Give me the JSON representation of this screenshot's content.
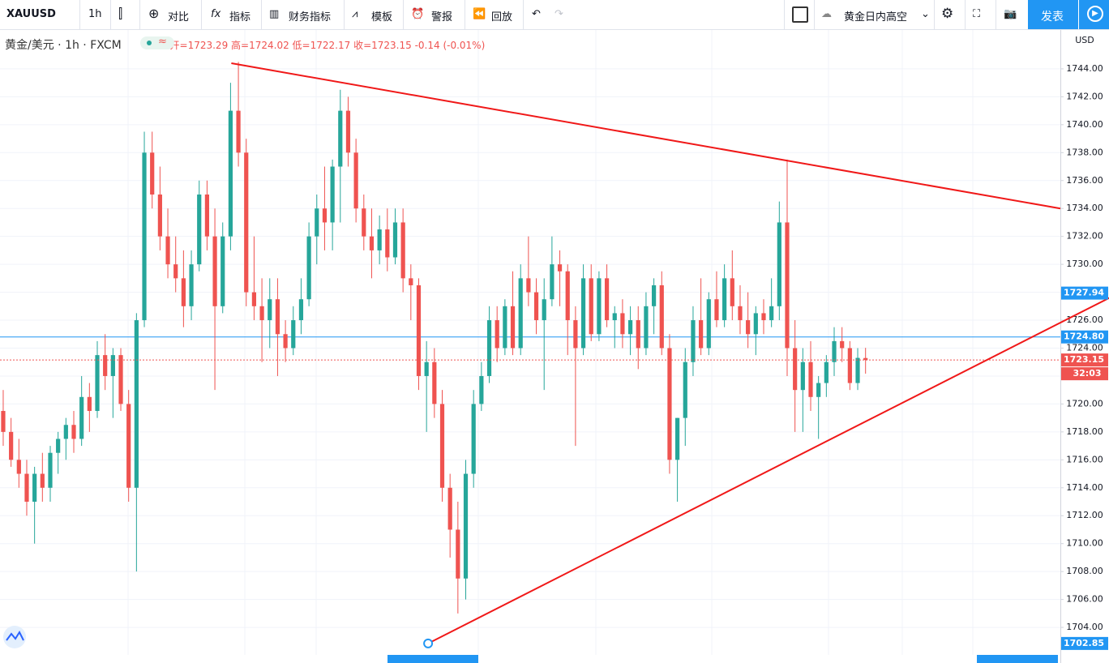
{
  "toolbar": {
    "symbol": "XAUUSD",
    "interval": "1h",
    "compare": "对比",
    "indicators": "指标",
    "financials": "财务指标",
    "templates": "模板",
    "alerts": "警报",
    "replay": "回放",
    "layout_name": "黄金日内高空",
    "publish": "发表"
  },
  "chart_data": {
    "type": "candlestick",
    "title": "黄金/美元 · 1h · FXCM",
    "legend": {
      "open": "开=",
      "high": "高=",
      "low": "低=",
      "close": "收=",
      "change": "-0.14 (-0.01%)"
    },
    "currency": "USD",
    "ohlc": [
      [
        1719.5,
        1721,
        1717,
        1718
      ],
      [
        1718,
        1719,
        1715.5,
        1716
      ],
      [
        1716,
        1717.5,
        1714,
        1715
      ],
      [
        1715,
        1716,
        1712,
        1713
      ],
      [
        1713,
        1715.5,
        1710,
        1715
      ],
      [
        1715,
        1716.5,
        1713,
        1714
      ],
      [
        1714,
        1717,
        1713,
        1716.5
      ],
      [
        1716.5,
        1718,
        1715,
        1717.5
      ],
      [
        1717.5,
        1719,
        1716,
        1718.5
      ],
      [
        1718.5,
        1719.5,
        1716.5,
        1717.5
      ],
      [
        1717.5,
        1722,
        1717,
        1720.5
      ],
      [
        1720.5,
        1721.5,
        1718,
        1719.5
      ],
      [
        1719.5,
        1724.5,
        1719,
        1723.5
      ],
      [
        1723.5,
        1725,
        1721,
        1722
      ],
      [
        1722,
        1724,
        1719,
        1723.5
      ],
      [
        1723.5,
        1724,
        1719.5,
        1720
      ],
      [
        1720,
        1721,
        1713,
        1714
      ],
      [
        1714,
        1726.5,
        1708,
        1726
      ],
      [
        1726,
        1739.5,
        1725.5,
        1738
      ],
      [
        1738,
        1739.5,
        1734,
        1735
      ],
      [
        1735,
        1737,
        1731,
        1732
      ],
      [
        1732,
        1734,
        1729,
        1730
      ],
      [
        1730,
        1732,
        1728,
        1729
      ],
      [
        1729,
        1731,
        1725.5,
        1727
      ],
      [
        1727,
        1731,
        1726,
        1730
      ],
      [
        1730,
        1736,
        1729.5,
        1735
      ],
      [
        1735,
        1736,
        1731,
        1732
      ],
      [
        1732,
        1734,
        1721,
        1727
      ],
      [
        1727,
        1733,
        1726.5,
        1732
      ],
      [
        1732,
        1743,
        1731,
        1741
      ],
      [
        1741,
        1744.5,
        1737,
        1738
      ],
      [
        1738,
        1739,
        1727,
        1728
      ],
      [
        1728,
        1732,
        1726,
        1727
      ],
      [
        1727,
        1729,
        1723,
        1726
      ],
      [
        1726,
        1729,
        1724,
        1727.5
      ],
      [
        1727.5,
        1729,
        1722,
        1725
      ],
      [
        1725,
        1726,
        1723,
        1724
      ],
      [
        1724,
        1727,
        1723.5,
        1726
      ],
      [
        1726,
        1729,
        1725,
        1727.5
      ],
      [
        1727.5,
        1733,
        1727,
        1732
      ],
      [
        1732,
        1735,
        1730,
        1734
      ],
      [
        1734,
        1737,
        1731,
        1733
      ],
      [
        1733,
        1737.5,
        1731,
        1737
      ],
      [
        1737,
        1742.5,
        1733,
        1741
      ],
      [
        1741,
        1742,
        1737,
        1738
      ],
      [
        1738,
        1739,
        1733,
        1734
      ],
      [
        1734,
        1735,
        1731,
        1732
      ],
      [
        1732,
        1734,
        1729,
        1731
      ],
      [
        1731,
        1733.5,
        1730,
        1732.5
      ],
      [
        1732.5,
        1734,
        1729.5,
        1730.5
      ],
      [
        1730.5,
        1734,
        1730,
        1733
      ],
      [
        1733,
        1734,
        1728,
        1729
      ],
      [
        1729,
        1730,
        1726,
        1728.5
      ],
      [
        1728.5,
        1729,
        1721,
        1722
      ],
      [
        1722,
        1724.5,
        1718,
        1723
      ],
      [
        1723,
        1724,
        1719,
        1720
      ],
      [
        1720,
        1721,
        1713,
        1714
      ],
      [
        1714,
        1715,
        1709,
        1711
      ],
      [
        1711,
        1713,
        1705,
        1707.5
      ],
      [
        1707.5,
        1716,
        1706,
        1715
      ],
      [
        1715,
        1721,
        1714,
        1720
      ],
      [
        1720,
        1723,
        1719.5,
        1722
      ],
      [
        1722,
        1727,
        1721.5,
        1726
      ],
      [
        1726,
        1727,
        1723,
        1724
      ],
      [
        1724,
        1727.5,
        1723.5,
        1727
      ],
      [
        1727,
        1729.5,
        1723.5,
        1724
      ],
      [
        1724,
        1730,
        1723.5,
        1729
      ],
      [
        1729,
        1732,
        1727,
        1728
      ],
      [
        1728,
        1729,
        1725,
        1726
      ],
      [
        1726,
        1729,
        1721,
        1727.5
      ],
      [
        1727.5,
        1732,
        1727,
        1730
      ],
      [
        1730,
        1731,
        1727,
        1729.5
      ],
      [
        1729.5,
        1730,
        1723.5,
        1726
      ],
      [
        1726,
        1727,
        1717,
        1724
      ],
      [
        1724,
        1730,
        1723.5,
        1729
      ],
      [
        1729,
        1730,
        1724.5,
        1725
      ],
      [
        1725,
        1729.5,
        1724.5,
        1729
      ],
      [
        1729,
        1730,
        1725.5,
        1726
      ],
      [
        1726,
        1727,
        1724,
        1726.5
      ],
      [
        1726.5,
        1727.5,
        1724,
        1725
      ],
      [
        1725,
        1727,
        1723.5,
        1726
      ],
      [
        1726,
        1727,
        1722.5,
        1724
      ],
      [
        1724,
        1728,
        1723.5,
        1727
      ],
      [
        1727,
        1729,
        1725,
        1728.5
      ],
      [
        1728.5,
        1729.5,
        1723.5,
        1724
      ],
      [
        1724,
        1725,
        1715,
        1716
      ],
      [
        1716,
        1719,
        1713,
        1719
      ],
      [
        1719,
        1724,
        1717,
        1723
      ],
      [
        1723,
        1727,
        1722,
        1726
      ],
      [
        1726,
        1729,
        1723.5,
        1724
      ],
      [
        1724,
        1728,
        1723.5,
        1727.5
      ],
      [
        1727.5,
        1729.5,
        1725.5,
        1726
      ],
      [
        1726,
        1730,
        1725.5,
        1729
      ],
      [
        1729,
        1731,
        1726,
        1727
      ],
      [
        1727,
        1728.5,
        1725,
        1726
      ],
      [
        1726,
        1728,
        1724,
        1725
      ],
      [
        1725,
        1727,
        1723.5,
        1726.5
      ],
      [
        1726.5,
        1727.5,
        1725,
        1726
      ],
      [
        1726,
        1729,
        1725.5,
        1727
      ],
      [
        1727,
        1734.5,
        1726,
        1733
      ],
      [
        1733,
        1737.5,
        1722,
        1724
      ],
      [
        1724,
        1726,
        1718,
        1721
      ],
      [
        1721,
        1724,
        1718,
        1723
      ],
      [
        1723,
        1724.5,
        1719.5,
        1720.5
      ],
      [
        1720.5,
        1722,
        1717.5,
        1721.5
      ],
      [
        1721.5,
        1723.5,
        1720.5,
        1723
      ],
      [
        1723,
        1725.5,
        1722,
        1724.5
      ],
      [
        1724.5,
        1725.5,
        1723,
        1724
      ],
      [
        1724,
        1724.5,
        1721,
        1721.5
      ],
      [
        1721.5,
        1724,
        1721,
        1723.3
      ],
      [
        1723.29,
        1724.02,
        1722.17,
        1723.15
      ]
    ],
    "xlim": [
      -0.41,
      134.85
    ],
    "ylim": [
      1701.45,
      1746.84
    ],
    "yticks": [
      {
        "value": 1704,
        "label": "1704.00"
      },
      {
        "value": 1706,
        "label": "1706.00"
      },
      {
        "value": 1708,
        "label": "1708.00"
      },
      {
        "value": 1710,
        "label": "1710.00"
      },
      {
        "value": 1712,
        "label": "1712.00"
      },
      {
        "value": 1714,
        "label": "1714.00"
      },
      {
        "value": 1716,
        "label": "1716.00"
      },
      {
        "value": 1718,
        "label": "1718.00"
      },
      {
        "value": 1720,
        "label": "1720.00"
      },
      {
        "value": 1722,
        "label": "1722.00"
      },
      {
        "value": 1724,
        "label": "1724.00"
      },
      {
        "value": 1726,
        "label": "1726.00"
      },
      {
        "value": 1728,
        "label": "1728.00"
      },
      {
        "value": 1730,
        "label": "1730.00"
      },
      {
        "value": 1732,
        "label": "1732.00"
      },
      {
        "value": 1734,
        "label": "1734.00"
      },
      {
        "value": 1736,
        "label": "1736.00"
      },
      {
        "value": 1738,
        "label": "1738.00"
      },
      {
        "value": 1740,
        "label": "1740.00"
      },
      {
        "value": 1742,
        "label": "1742.00"
      },
      {
        "value": 1744,
        "label": "1744.00"
      }
    ],
    "up_color": "#26a69a",
    "down_color": "#ef5350",
    "grid": true,
    "trendlines": [
      {
        "color": "#f01818",
        "points": [
          [
            29.1,
            1744.4
          ],
          [
            134.85,
            1734.0
          ]
        ]
      },
      {
        "color": "#f01818",
        "points": [
          [
            54.2,
            1702.85
          ],
          [
            141.1,
            1727.6
          ]
        ]
      }
    ],
    "trend_badge": {
      "value": 1727.94,
      "label": "1727.94"
    },
    "hline": {
      "value": 1724.8,
      "label": "1724.80",
      "color": "#2196f3"
    },
    "countdown": "32:03"
  }
}
